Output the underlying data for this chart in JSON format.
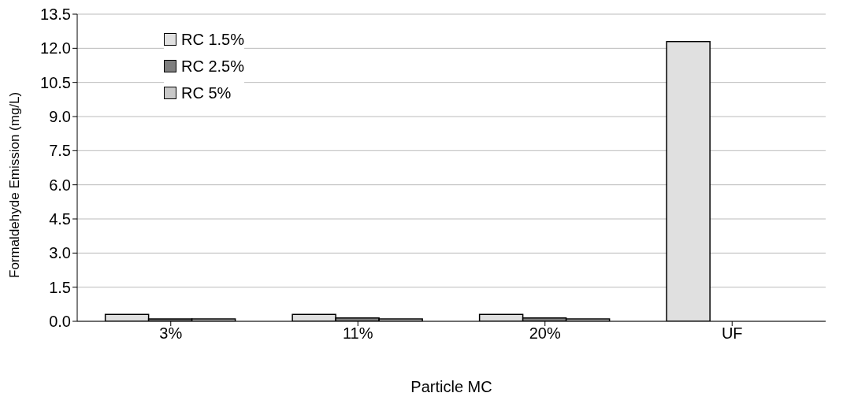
{
  "chart_data": {
    "type": "bar",
    "xlabel": "Particle MC",
    "ylabel": "Formaldehyde Emission (mg/L)",
    "categories": [
      "3%",
      "11%",
      "20%",
      "UF"
    ],
    "series": [
      {
        "name": "RC 1.5%",
        "color": "#e0e0e0",
        "values": [
          0.3,
          0.3,
          0.3,
          12.3
        ]
      },
      {
        "name": "RC 2.5%",
        "color": "#7f7f7f",
        "values": [
          0.1,
          0.15,
          0.15,
          null
        ]
      },
      {
        "name": "RC 5%",
        "color": "#c8c8c8",
        "values": [
          0.1,
          0.1,
          0.1,
          null
        ]
      }
    ],
    "ylim": [
      0,
      13.5
    ],
    "yticks": [
      {
        "value": 0,
        "label": "0.0"
      },
      1.5,
      {
        "value": 3,
        "label": "3.0"
      },
      4.5,
      {
        "value": 6,
        "label": "6.0"
      },
      7.5,
      {
        "value": 9,
        "label": "9.0"
      },
      10.5,
      {
        "value": 12,
        "label": "12.0"
      },
      13.5
    ],
    "grid": "y",
    "legend": "top left"
  }
}
